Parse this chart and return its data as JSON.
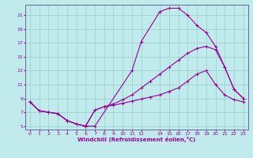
{
  "xlabel": "Windchill (Refroidissement éolien,°C)",
  "background_color": "#c0eaec",
  "grid_color": "#99cccc",
  "line_color": "#990099",
  "spine_color": "#666699",
  "xlim": [
    -0.5,
    23.5
  ],
  "ylim": [
    4.5,
    22.5
  ],
  "xticks": [
    0,
    1,
    2,
    3,
    4,
    5,
    6,
    7,
    8,
    9,
    10,
    11,
    12,
    14,
    15,
    16,
    17,
    18,
    19,
    20,
    21,
    22,
    23
  ],
  "yticks": [
    5,
    7,
    9,
    11,
    13,
    15,
    17,
    19,
    21
  ],
  "curve1_x": [
    0,
    1,
    2,
    3,
    4,
    5,
    6,
    7,
    11,
    12,
    14,
    15,
    16,
    17,
    18,
    19,
    20,
    21,
    22,
    23
  ],
  "curve1_y": [
    8.5,
    7.2,
    7.0,
    6.8,
    5.8,
    5.3,
    5.0,
    5.0,
    13.0,
    17.2,
    21.5,
    22.0,
    22.0,
    21.0,
    19.5,
    18.5,
    16.5,
    13.5,
    10.3,
    9.0
  ],
  "curve2_x": [
    0,
    1,
    2,
    3,
    4,
    5,
    6,
    7,
    8,
    9,
    10,
    11,
    12,
    13,
    14,
    15,
    16,
    17,
    18,
    19,
    20,
    21,
    22,
    23
  ],
  "curve2_y": [
    8.5,
    7.2,
    7.0,
    6.8,
    5.8,
    5.3,
    5.0,
    7.3,
    7.8,
    8.2,
    8.8,
    9.5,
    10.5,
    11.5,
    12.5,
    13.5,
    14.5,
    15.5,
    16.2,
    16.5,
    16.0,
    13.5,
    10.3,
    9.0
  ],
  "curve3_x": [
    0,
    1,
    2,
    3,
    4,
    5,
    6,
    7,
    8,
    9,
    10,
    11,
    12,
    13,
    14,
    15,
    16,
    17,
    18,
    19,
    20,
    21,
    22,
    23
  ],
  "curve3_y": [
    8.5,
    7.2,
    7.0,
    6.8,
    5.8,
    5.3,
    5.0,
    7.3,
    7.8,
    8.0,
    8.3,
    8.6,
    8.9,
    9.2,
    9.5,
    10.0,
    10.5,
    11.5,
    12.5,
    13.0,
    11.0,
    9.5,
    8.8,
    8.5
  ]
}
